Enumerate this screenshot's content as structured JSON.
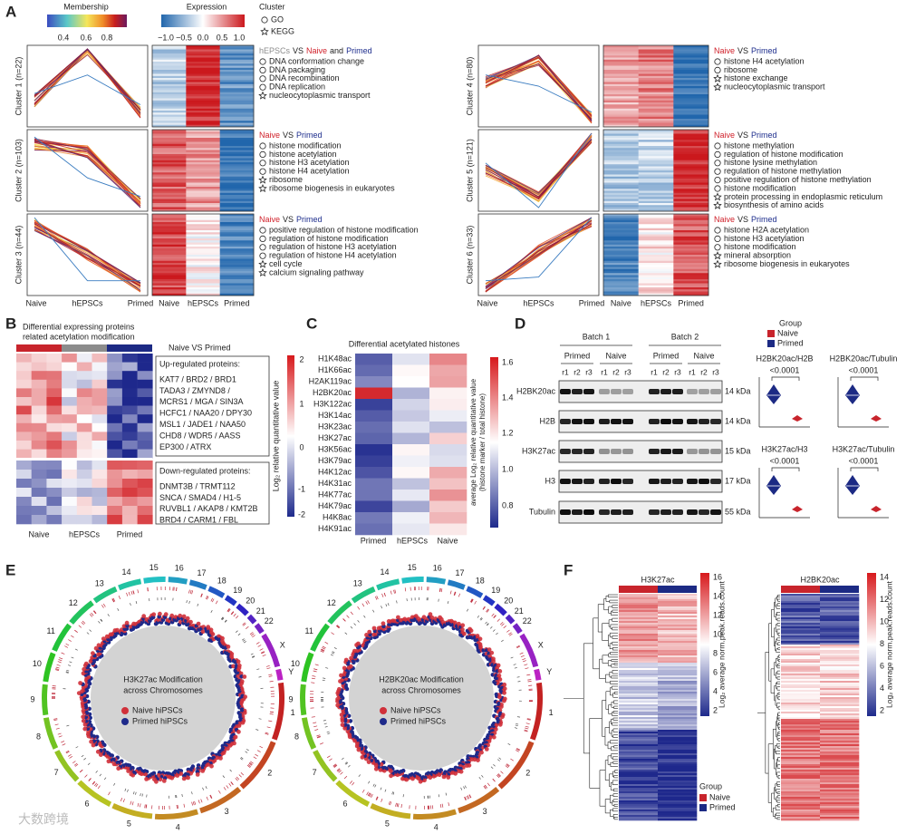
{
  "panel_a": {
    "label": "A",
    "membership": {
      "title": "Membership",
      "ticks": [
        "0.4",
        "0.6",
        "0.8"
      ]
    },
    "expression": {
      "title": "Expression",
      "ticks": [
        "−1.0",
        "−0.5",
        "0.0",
        "0.5",
        "1.0"
      ]
    },
    "cluster_legend": {
      "title": "Cluster",
      "items": [
        {
          "shape": "circle",
          "text": "GO"
        },
        {
          "shape": "star",
          "text": "KEGG"
        }
      ]
    },
    "x_labels": [
      "Naive",
      "hEPSCs",
      "Primed"
    ],
    "clusters": [
      {
        "label": "Cluster 1 (n=22)",
        "comparison": [
          {
            "text": "hEPSCs",
            "color": "#8c8c8c"
          },
          {
            "text": "VS",
            "color": "#222222"
          },
          {
            "text": "Naive",
            "color": "#d0202a"
          },
          {
            "text": "and",
            "color": "#222222"
          },
          {
            "text": "Primed",
            "color": "#1d2d8c"
          }
        ],
        "terms": [
          {
            "shape": "circle",
            "text": "DNA conformation change"
          },
          {
            "shape": "circle",
            "text": "DNA packaging"
          },
          {
            "shape": "circle",
            "text": "DNA recombination"
          },
          {
            "shape": "circle",
            "text": "DNA replication"
          },
          {
            "shape": "star",
            "text": "nucleocytoplasmic transport"
          }
        ]
      },
      {
        "label": "Cluster 2 (n=103)",
        "comparison": [
          {
            "text": "Naive",
            "color": "#d0202a"
          },
          {
            "text": "VS",
            "color": "#222222"
          },
          {
            "text": "Primed",
            "color": "#1d2d8c"
          }
        ],
        "terms": [
          {
            "shape": "circle",
            "text": "histone modification"
          },
          {
            "shape": "circle",
            "text": "histone acetylation"
          },
          {
            "shape": "circle",
            "text": "histone H3 acetylation"
          },
          {
            "shape": "circle",
            "text": "histone H4 acetylation"
          },
          {
            "shape": "star",
            "text": "ribosome"
          },
          {
            "shape": "star",
            "text": "ribosome biogenesis in eukaryotes"
          }
        ]
      },
      {
        "label": "Cluster 3 (n=44)",
        "comparison": [
          {
            "text": "Naive",
            "color": "#d0202a"
          },
          {
            "text": "VS",
            "color": "#222222"
          },
          {
            "text": "Primed",
            "color": "#1d2d8c"
          }
        ],
        "terms": [
          {
            "shape": "circle",
            "text": "positive regulation of histone modification"
          },
          {
            "shape": "circle",
            "text": "regulation of histone modification"
          },
          {
            "shape": "circle",
            "text": "regulation of histone H3 acetylation"
          },
          {
            "shape": "circle",
            "text": "regulation of histone H4 acetylation"
          },
          {
            "shape": "star",
            "text": "cell cycle"
          },
          {
            "shape": "star",
            "text": "calcium signaling pathway"
          }
        ]
      },
      {
        "label": "Cluster 4 (n=80)",
        "comparison": [
          {
            "text": "Naive",
            "color": "#d0202a"
          },
          {
            "text": "VS",
            "color": "#222222"
          },
          {
            "text": "Primed",
            "color": "#1d2d8c"
          }
        ],
        "terms": [
          {
            "shape": "circle",
            "text": "histone H4 acetylation"
          },
          {
            "shape": "circle",
            "text": "ribosome"
          },
          {
            "shape": "star",
            "text": "histone exchange"
          },
          {
            "shape": "star",
            "text": "nucleocytoplasmic transport"
          }
        ]
      },
      {
        "label": "Cluster 5 (n=121)",
        "comparison": [
          {
            "text": "Naive",
            "color": "#d0202a"
          },
          {
            "text": "VS",
            "color": "#222222"
          },
          {
            "text": "Primed",
            "color": "#1d2d8c"
          }
        ],
        "terms": [
          {
            "shape": "circle",
            "text": "histone methylation"
          },
          {
            "shape": "circle",
            "text": "regulation of histone modification"
          },
          {
            "shape": "circle",
            "text": "histone lysine methylation"
          },
          {
            "shape": "circle",
            "text": "regulation of histone methylation"
          },
          {
            "shape": "circle",
            "text": "positive regulation of histone methylation"
          },
          {
            "shape": "circle",
            "text": "histone modification"
          },
          {
            "shape": "star",
            "text": "protein processing in endoplasmic reticulum"
          },
          {
            "shape": "star",
            "text": "biosynthesis of amino acids"
          }
        ]
      },
      {
        "label": "Cluster 6 (n=33)",
        "comparison": [
          {
            "text": "Naive",
            "color": "#d0202a"
          },
          {
            "text": "VS",
            "color": "#222222"
          },
          {
            "text": "Primed",
            "color": "#1d2d8c"
          }
        ],
        "terms": [
          {
            "shape": "circle",
            "text": "histone H2A acetylation"
          },
          {
            "shape": "circle",
            "text": "histone H3 acetylation"
          },
          {
            "shape": "circle",
            "text": "histone modification"
          },
          {
            "shape": "star",
            "text": "mineral absorption"
          },
          {
            "shape": "star",
            "text": "ribosome biogenesis in eukaryotes"
          }
        ]
      }
    ]
  },
  "panel_b": {
    "label": "B",
    "title": [
      "Differential expressing proteins",
      "related acetylation modification"
    ],
    "comparison": "Naive VS Primed",
    "up_title": "Up-regulated proteins:",
    "up_proteins": [
      "KAT7 / BRD2 / BRD1",
      "TADA3 / ZMYND8 /",
      "MCRS1 / MGA / SIN3A",
      "HCFC1 / NAA20 / DPY30",
      "MSL1 / JADE1 / NAA50",
      "CHD8 / WDR5 / AASS",
      "EP300 / ATRX"
    ],
    "down_title": "Down-regulated proteins:",
    "down_proteins": [
      "DNMT3B / TRMT112",
      "SNCA / SMAD4 / H1-5",
      "RUVBL1 / AKAP8 / KMT2B",
      "BRD4 / CARM1 / FBL"
    ],
    "columns": [
      "Naive",
      "hEPSCs",
      "Primed"
    ],
    "colorbar_ticks": [
      "2",
      "1",
      "0",
      "-1",
      "-2"
    ],
    "colorbar_label": "Log₂ relative quantitative value"
  },
  "panel_c": {
    "label": "C",
    "title": "Differential acetylated histones",
    "rows": [
      {
        "text": "H1K48ac",
        "color": "#222222"
      },
      {
        "text": "H1K66ac",
        "color": "#222222"
      },
      {
        "text": "H2AK119ac",
        "color": "#222222"
      },
      {
        "text": "H2BK20ac",
        "color": "#d0202a"
      },
      {
        "text": "H3K122ac",
        "color": "#222222"
      },
      {
        "text": "H3K14ac",
        "color": "#222222"
      },
      {
        "text": "H3K23ac",
        "color": "#222222"
      },
      {
        "text": "H3K27ac",
        "color": "#d0202a"
      },
      {
        "text": "H3K56ac",
        "color": "#222222"
      },
      {
        "text": "H3K79ac",
        "color": "#222222"
      },
      {
        "text": "H4K12ac",
        "color": "#222222"
      },
      {
        "text": "H4K31ac",
        "color": "#222222"
      },
      {
        "text": "H4K77ac",
        "color": "#222222"
      },
      {
        "text": "H4K79ac",
        "color": "#222222"
      },
      {
        "text": "H4K8ac",
        "color": "#222222"
      },
      {
        "text": "H4K91ac",
        "color": "#222222"
      }
    ],
    "columns": [
      "Primed",
      "hEPSCs",
      "Naive"
    ],
    "colorbar_ticks": [
      "1.6",
      "1.4",
      "1.2",
      "1.0",
      "0.8"
    ],
    "colorbar_label": [
      "average Log₂ relative quantitative value",
      "(histone marker / total histone)"
    ]
  },
  "panel_d": {
    "label": "D",
    "batches": [
      "Batch 1",
      "Batch 2"
    ],
    "groups": [
      "Primed",
      "Naive"
    ],
    "lanes": [
      "r1",
      "r2",
      "r3"
    ],
    "blots": [
      {
        "name": "H2BK20ac",
        "size": "14 kDa"
      },
      {
        "name": "H2B",
        "size": "14 kDa"
      },
      {
        "name": "H3K27ac",
        "size": "15 kDa"
      },
      {
        "name": "H3",
        "size": "17 kDa"
      },
      {
        "name": "Tubulin",
        "size": "55 kDa"
      }
    ],
    "legend": {
      "title": "Group",
      "items": [
        {
          "text": "Naive",
          "color": "#c8242c"
        },
        {
          "text": "Primed",
          "color": "#1c2a84"
        }
      ]
    },
    "ratios": [
      {
        "title": "H2BK20ac/H2B",
        "p": "<0.0001"
      },
      {
        "title": "H2BK20ac/Tubulin",
        "p": "<0.0001"
      },
      {
        "title": "H3K27ac/H3",
        "p": "<0.0001"
      },
      {
        "title": "H3K27ac/Tubulin",
        "p": "<0.0001"
      }
    ]
  },
  "panel_e": {
    "label": "E",
    "chromosomes": [
      "1",
      "2",
      "3",
      "4",
      "5",
      "6",
      "7",
      "8",
      "9",
      "10",
      "11",
      "12",
      "13",
      "14",
      "15",
      "16",
      "17",
      "18",
      "19",
      "20",
      "21",
      "22",
      "X",
      "Y"
    ],
    "circos": [
      {
        "title": [
          "H3K27ac Modification",
          "across Chromosomes"
        ]
      },
      {
        "title": [
          "H2BK20ac Modification",
          "across Chromosomes"
        ]
      }
    ],
    "legend": [
      {
        "text": "Naive hiPSCs",
        "color": "#d0303a"
      },
      {
        "text": "Primed hiPSCs",
        "color": "#1e2a8a"
      }
    ]
  },
  "panel_f": {
    "label": "F",
    "heatmaps": [
      {
        "title": "H3K27ac",
        "colorbar_ticks": [
          "16",
          "14",
          "12",
          "10",
          "8",
          "6",
          "4",
          "2"
        ]
      },
      {
        "title": "H2BK20ac",
        "colorbar_ticks": [
          "14",
          "12",
          "10",
          "8",
          "6",
          "4",
          "2"
        ]
      }
    ],
    "colorbar_label": "Log₂ average norm.peak.reads.count",
    "legend": {
      "title": "Group",
      "items": [
        {
          "text": "Naive",
          "color": "#c8242c"
        },
        {
          "text": "Primed",
          "color": "#1c2a84"
        }
      ]
    }
  },
  "watermark": "大数跨境"
}
